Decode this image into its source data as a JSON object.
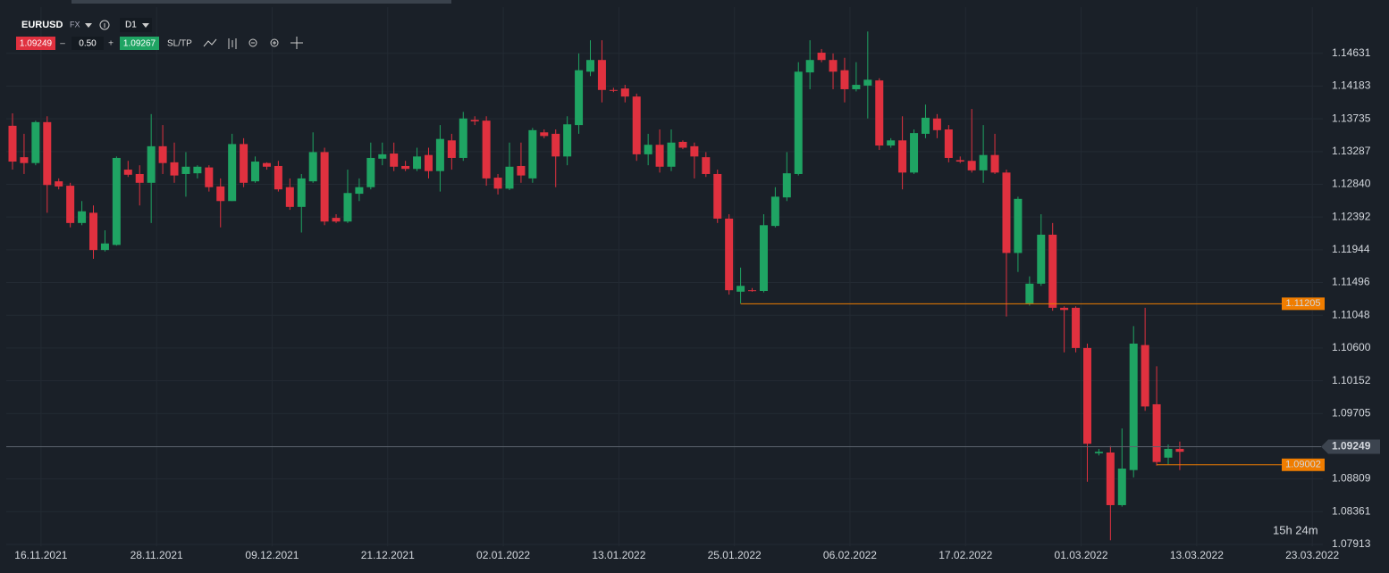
{
  "toolbar": {
    "symbol": "EURUSD",
    "market": "FX",
    "timeframe": "D1",
    "bid": "1.09249",
    "minus": "–",
    "lot": "0.50",
    "plus": "+",
    "ask": "1.09267",
    "sltp": "SL/TP"
  },
  "chart_data": {
    "type": "candlestick",
    "up_color": "#1fa463",
    "down_color": "#e0313f",
    "ylim": [
      1.07888,
      1.15263
    ],
    "yticks": [
      1.14631,
      1.14183,
      1.13735,
      1.13287,
      {
        "value": 1.1284,
        "label": "1.12840"
      },
      1.12392,
      1.11944,
      1.11496,
      1.11048,
      {
        "value": 1.106,
        "label": "1.10600"
      },
      1.10152,
      1.09705,
      1.08809,
      1.08361,
      1.07913
    ],
    "grid": true,
    "xticks": [
      "16.11.2021",
      "28.11.2021",
      "09.12.2021",
      "21.12.2021",
      "02.01.2022",
      "13.01.2022",
      "25.01.2022",
      "06.02.2022",
      "17.02.2022",
      "01.03.2022",
      "13.03.2022",
      "23.03.2022"
    ],
    "open": [
      1.1364,
      1.1321,
      1.1313,
      1.1369,
      1.1288,
      1.1282,
      1.1231,
      1.1245,
      1.1194,
      1.1201,
      1.1304,
      1.1298,
      1.1286,
      1.1336,
      1.1314,
      1.1298,
      1.1299,
      1.1307,
      1.1281,
      1.1261,
      1.1339,
      1.1288,
      1.1313,
      1.1309,
      1.128,
      1.1253,
      1.1288,
      1.1328,
      1.1238,
      1.1233,
      1.1271,
      1.128,
      1.1319,
      1.1326,
      1.1309,
      1.1305,
      1.1324,
      1.1302,
      1.1344,
      1.132,
      1.1372,
      1.1371,
      1.1293,
      1.1278,
      1.1309,
      1.1292,
      1.1355,
      1.1353,
      1.1322,
      1.1365,
      1.1438,
      1.1454,
      1.1413,
      1.1415,
      1.1404,
      1.1325,
      1.1338,
      1.1308,
      1.1342,
      1.1336,
      1.1321,
      1.1298,
      1.1237,
      1.1137,
      1.1139,
      1.1138,
      1.1227,
      1.1266,
      1.1298,
      1.1437,
      1.1464,
      1.1454,
      1.144,
      1.1414,
      1.1419,
      1.1426,
      1.1337,
      1.1344,
      1.13,
      1.1353,
      1.1374,
      1.1359,
      1.1317,
      1.1316,
      1.1303,
      1.1324,
      1.13,
      1.119,
      1.1121,
      1.1148,
      1.1215,
      1.1115,
      1.1115,
      1.106,
      1.0916,
      1.0917,
      1.0845,
      1.0893,
      1.1064,
      1.0983,
      1.091,
      1.0922
    ],
    "high": [
      1.1381,
      1.1353,
      1.1371,
      1.1377,
      1.1292,
      1.1286,
      1.1261,
      1.1255,
      1.1221,
      1.1322,
      1.1316,
      1.131,
      1.138,
      1.1365,
      1.1341,
      1.1328,
      1.131,
      1.131,
      1.1292,
      1.1353,
      1.1347,
      1.1322,
      1.1314,
      1.1316,
      1.1292,
      1.1298,
      1.1355,
      1.1334,
      1.1243,
      1.1304,
      1.1292,
      1.1341,
      1.1341,
      1.1341,
      1.1316,
      1.1334,
      1.1334,
      1.1365,
      1.1353,
      1.1383,
      1.1377,
      1.1377,
      1.1298,
      1.1341,
      1.1341,
      1.1361,
      1.1359,
      1.1359,
      1.1377,
      1.1463,
      1.1481,
      1.1481,
      1.1416,
      1.142,
      1.1408,
      1.1353,
      1.1359,
      1.1359,
      1.1344,
      1.1341,
      1.1328,
      1.1304,
      1.1243,
      1.117,
      1.1142,
      1.1243,
      1.128,
      1.1328,
      1.1451,
      1.1481,
      1.1469,
      1.1463,
      1.1457,
      1.1451,
      1.1493,
      1.1429,
      1.1347,
      1.1377,
      1.1359,
      1.1393,
      1.138,
      1.1365,
      1.1322,
      1.1387,
      1.1365,
      1.1353,
      1.1304,
      1.1267,
      1.1158,
      1.1243,
      1.1231,
      1.1117,
      1.1117,
      1.1066,
      1.0922,
      1.0926,
      1.095,
      1.109,
      1.1115,
      1.1035,
      1.0928,
      1.0932
    ],
    "low": [
      1.1304,
      1.1298,
      1.131,
      1.1245,
      1.1277,
      1.1225,
      1.1228,
      1.1182,
      1.1192,
      1.12,
      1.1294,
      1.1255,
      1.1231,
      1.1298,
      1.1286,
      1.1267,
      1.1292,
      1.1274,
      1.1225,
      1.1261,
      1.128,
      1.1286,
      1.1304,
      1.1274,
      1.1249,
      1.1218,
      1.1286,
      1.1228,
      1.1231,
      1.1231,
      1.1261,
      1.1277,
      1.131,
      1.1302,
      1.1302,
      1.1302,
      1.1292,
      1.1274,
      1.1304,
      1.1316,
      1.1365,
      1.1282,
      1.127,
      1.1276,
      1.1286,
      1.1286,
      1.1347,
      1.128,
      1.131,
      1.1353,
      1.1432,
      1.1396,
      1.141,
      1.1396,
      1.1316,
      1.131,
      1.13,
      1.1302,
      1.1332,
      1.1292,
      1.1294,
      1.1231,
      1.1133,
      1.1121,
      1.1137,
      1.1136,
      1.1225,
      1.1261,
      1.1296,
      1.1414,
      1.1451,
      1.1414,
      1.1396,
      1.1411,
      1.1374,
      1.1331,
      1.1334,
      1.1277,
      1.1298,
      1.1347,
      1.1347,
      1.1314,
      1.1313,
      1.13,
      1.1286,
      1.1298,
      1.1103,
      1.1164,
      1.1118,
      1.1145,
      1.1111,
      1.1054,
      1.1054,
      1.0877,
      1.0913,
      1.0797,
      1.0843,
      1.0883,
      1.0974,
      1.0899,
      1.0901,
      1.0893
    ],
    "close": [
      1.1315,
      1.1313,
      1.1369,
      1.1283,
      1.1281,
      1.1231,
      1.1247,
      1.1194,
      1.1203,
      1.132,
      1.1297,
      1.1286,
      1.1336,
      1.1313,
      1.1296,
      1.1308,
      1.1308,
      1.128,
      1.1261,
      1.1339,
      1.1286,
      1.1315,
      1.1308,
      1.1277,
      1.1253,
      1.1292,
      1.1328,
      1.1233,
      1.1233,
      1.1272,
      1.128,
      1.132,
      1.1325,
      1.1308,
      1.1305,
      1.1322,
      1.1302,
      1.1346,
      1.132,
      1.1374,
      1.137,
      1.1292,
      1.1278,
      1.1308,
      1.1296,
      1.1358,
      1.135,
      1.1322,
      1.1366,
      1.144,
      1.1454,
      1.1413,
      1.1412,
      1.1404,
      1.1325,
      1.1338,
      1.1308,
      1.1341,
      1.1334,
      1.1322,
      1.1298,
      1.1237,
      1.1139,
      1.1145,
      1.1138,
      1.1228,
      1.1267,
      1.1299,
      1.1438,
      1.1454,
      1.1454,
      1.1438,
      1.1414,
      1.142,
      1.1427,
      1.1337,
      1.1344,
      1.13,
      1.1354,
      1.1375,
      1.1358,
      1.132,
      1.1315,
      1.1303,
      1.1324,
      1.13,
      1.119,
      1.1264,
      1.1148,
      1.1215,
      1.1115,
      1.1112,
      1.106,
      1.0929,
      1.0918,
      1.0845,
      1.0895,
      1.1066,
      1.098,
      1.0904,
      1.0922,
      1.0918
    ],
    "levels": [
      {
        "value": 1.11205,
        "color": "#f07d00"
      },
      {
        "value": 1.09002,
        "color": "#f07d00"
      }
    ],
    "last_price": 1.09249,
    "countdown": "15h 24m"
  }
}
